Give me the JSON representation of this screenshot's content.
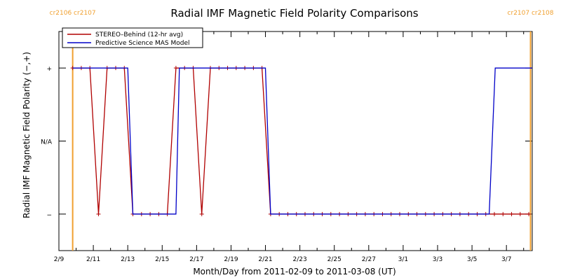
{
  "chart_data": {
    "type": "line",
    "title": "Radial IMF Magnetic Field Polarity Comparisons",
    "xlabel": "Month/Day from 2011-02-09 to 2011-03-08 (UT)",
    "ylabel": "Radial IMF Magnetic Field Polarity (−,+)",
    "x_unit": "days",
    "xlim": [
      0,
      27.5
    ],
    "ylim": [
      -1.5,
      1.5
    ],
    "y_ticks": [
      {
        "value": 1,
        "label": "+"
      },
      {
        "value": 0,
        "label": "N/A"
      },
      {
        "value": -1,
        "label": "−"
      }
    ],
    "x_ticks": [
      {
        "value": 0,
        "label": "2/9"
      },
      {
        "value": 2,
        "label": "2/11"
      },
      {
        "value": 4,
        "label": "2/13"
      },
      {
        "value": 6,
        "label": "2/15"
      },
      {
        "value": 8,
        "label": "2/17"
      },
      {
        "value": 10,
        "label": "2/19"
      },
      {
        "value": 12,
        "label": "2/21"
      },
      {
        "value": 14,
        "label": "2/23"
      },
      {
        "value": 16,
        "label": "2/25"
      },
      {
        "value": 18,
        "label": "2/27"
      },
      {
        "value": 20,
        "label": "3/1"
      },
      {
        "value": 22,
        "label": "3/3"
      },
      {
        "value": 24,
        "label": "3/5"
      },
      {
        "value": 26,
        "label": "3/7"
      }
    ],
    "carrington_markers": [
      {
        "x": 0.8,
        "labels": [
          "cr2106",
          "cr2107"
        ],
        "color": "#f0a030"
      },
      {
        "x": 27.4,
        "labels": [
          "cr2107",
          "cr2108"
        ],
        "color": "#f0a030"
      }
    ],
    "legend_position": "top-left",
    "series": [
      {
        "name": "STEREO–Behind (12-hr avg)",
        "color": "#b00000",
        "marker": "+",
        "x": [
          0.8,
          1.3,
          1.8,
          2.3,
          2.8,
          3.3,
          3.8,
          4.3,
          4.8,
          5.3,
          5.8,
          6.3,
          6.8,
          7.3,
          7.8,
          8.3,
          8.8,
          9.3,
          9.8,
          10.3,
          10.8,
          11.3,
          11.8,
          12.3,
          12.8,
          13.3,
          13.8,
          14.3,
          14.8,
          15.3,
          15.8,
          16.3,
          16.8,
          17.3,
          17.8,
          18.3,
          18.8,
          19.3,
          19.8,
          20.3,
          20.8,
          21.3,
          21.8,
          22.3,
          22.8,
          23.3,
          23.8,
          24.3,
          24.8,
          25.3,
          25.8,
          26.3,
          26.8,
          27.3
        ],
        "values": [
          1,
          1,
          1,
          -1,
          1,
          1,
          1,
          -1,
          -1,
          -1,
          -1,
          -1,
          1,
          1,
          1,
          -1,
          1,
          1,
          1,
          1,
          1,
          1,
          1,
          -1,
          -1,
          -1,
          -1,
          -1,
          -1,
          -1,
          -1,
          -1,
          -1,
          -1,
          -1,
          -1,
          -1,
          -1,
          -1,
          -1,
          -1,
          -1,
          -1,
          -1,
          -1,
          -1,
          -1,
          -1,
          -1,
          -1,
          -1,
          -1,
          -1,
          -1
        ]
      },
      {
        "name": "Predictive Science MAS Model",
        "color": "#0000c8",
        "x": [
          0.8,
          4.0,
          4.3,
          6.8,
          7.0,
          12.0,
          12.3,
          25.0,
          25.35,
          27.5
        ],
        "values": [
          1,
          1,
          -1,
          -1,
          1,
          1,
          -1,
          -1,
          1,
          1
        ]
      }
    ]
  }
}
